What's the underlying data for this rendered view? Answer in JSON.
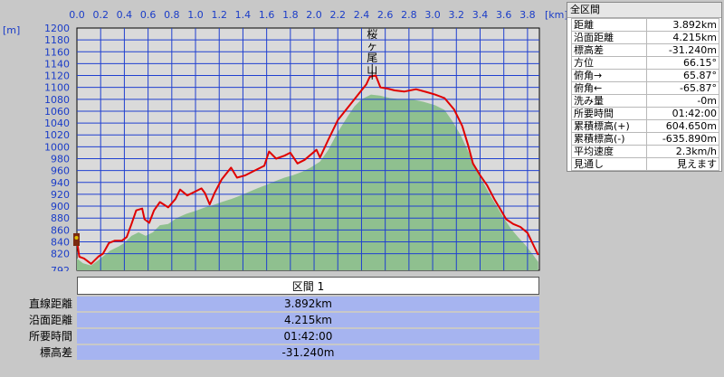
{
  "chart_data": {
    "type": "area",
    "x_unit": "[km]",
    "y_unit": "[m]",
    "xlim": [
      0,
      3.9
    ],
    "ylim": [
      792,
      1200
    ],
    "x_ticks": [
      "0.0",
      "0.2",
      "0.4",
      "0.6",
      "0.8",
      "1.0",
      "1.2",
      "1.4",
      "1.6",
      "1.8",
      "2.0",
      "2.2",
      "2.4",
      "2.6",
      "2.8",
      "3.0",
      "3.2",
      "3.4",
      "3.6",
      "3.8"
    ],
    "y_ticks": [
      "1200",
      "1180",
      "1160",
      "1140",
      "1120",
      "1100",
      "1080",
      "1060",
      "1040",
      "1020",
      "1000",
      "980",
      "960",
      "940",
      "920",
      "900",
      "880",
      "860",
      "840",
      "820",
      "792"
    ],
    "grid": true,
    "peak_label": "桜ヶ尾山",
    "peak_x": 2.49,
    "series": [
      {
        "kind": "line",
        "color": "#e00000",
        "points": [
          [
            0.0,
            842
          ],
          [
            0.02,
            815
          ],
          [
            0.06,
            812
          ],
          [
            0.12,
            803
          ],
          [
            0.18,
            815
          ],
          [
            0.22,
            820
          ],
          [
            0.27,
            838
          ],
          [
            0.32,
            842
          ],
          [
            0.38,
            842
          ],
          [
            0.42,
            848
          ],
          [
            0.46,
            870
          ],
          [
            0.5,
            893
          ],
          [
            0.55,
            896
          ],
          [
            0.57,
            878
          ],
          [
            0.61,
            872
          ],
          [
            0.65,
            893
          ],
          [
            0.7,
            907
          ],
          [
            0.77,
            898
          ],
          [
            0.83,
            912
          ],
          [
            0.87,
            928
          ],
          [
            0.93,
            918
          ],
          [
            0.98,
            923
          ],
          [
            1.05,
            930
          ],
          [
            1.08,
            922
          ],
          [
            1.12,
            903
          ],
          [
            1.16,
            922
          ],
          [
            1.22,
            945
          ],
          [
            1.3,
            965
          ],
          [
            1.35,
            948
          ],
          [
            1.42,
            952
          ],
          [
            1.5,
            960
          ],
          [
            1.58,
            968
          ],
          [
            1.62,
            992
          ],
          [
            1.68,
            980
          ],
          [
            1.75,
            985
          ],
          [
            1.8,
            990
          ],
          [
            1.86,
            972
          ],
          [
            1.92,
            978
          ],
          [
            2.02,
            995
          ],
          [
            2.05,
            982
          ],
          [
            2.12,
            1012
          ],
          [
            2.2,
            1045
          ],
          [
            2.3,
            1070
          ],
          [
            2.38,
            1090
          ],
          [
            2.44,
            1105
          ],
          [
            2.47,
            1118
          ],
          [
            2.52,
            1120
          ],
          [
            2.56,
            1100
          ],
          [
            2.62,
            1098
          ],
          [
            2.68,
            1095
          ],
          [
            2.76,
            1093
          ],
          [
            2.86,
            1097
          ],
          [
            2.95,
            1092
          ],
          [
            3.02,
            1088
          ],
          [
            3.1,
            1082
          ],
          [
            3.18,
            1063
          ],
          [
            3.25,
            1035
          ],
          [
            3.3,
            1002
          ],
          [
            3.34,
            972
          ],
          [
            3.4,
            952
          ],
          [
            3.46,
            935
          ],
          [
            3.52,
            912
          ],
          [
            3.57,
            895
          ],
          [
            3.62,
            878
          ],
          [
            3.68,
            870
          ],
          [
            3.74,
            865
          ],
          [
            3.8,
            855
          ],
          [
            3.86,
            830
          ],
          [
            3.89,
            818
          ]
        ]
      },
      {
        "kind": "area",
        "color": "#8fc08f",
        "points": [
          [
            0.0,
            812
          ],
          [
            0.05,
            804
          ],
          [
            0.12,
            800
          ],
          [
            0.2,
            812
          ],
          [
            0.28,
            825
          ],
          [
            0.35,
            832
          ],
          [
            0.4,
            838
          ],
          [
            0.46,
            850
          ],
          [
            0.52,
            856
          ],
          [
            0.58,
            850
          ],
          [
            0.64,
            856
          ],
          [
            0.7,
            868
          ],
          [
            0.77,
            870
          ],
          [
            0.84,
            880
          ],
          [
            0.92,
            887
          ],
          [
            1.0,
            892
          ],
          [
            1.08,
            898
          ],
          [
            1.15,
            902
          ],
          [
            1.22,
            907
          ],
          [
            1.3,
            912
          ],
          [
            1.38,
            918
          ],
          [
            1.45,
            924
          ],
          [
            1.52,
            930
          ],
          [
            1.6,
            936
          ],
          [
            1.67,
            942
          ],
          [
            1.75,
            948
          ],
          [
            1.82,
            952
          ],
          [
            1.9,
            958
          ],
          [
            1.97,
            965
          ],
          [
            2.05,
            975
          ],
          [
            2.12,
            995
          ],
          [
            2.2,
            1025
          ],
          [
            2.28,
            1050
          ],
          [
            2.34,
            1068
          ],
          [
            2.4,
            1080
          ],
          [
            2.48,
            1088
          ],
          [
            2.56,
            1086
          ],
          [
            2.64,
            1082
          ],
          [
            2.72,
            1080
          ],
          [
            2.82,
            1080
          ],
          [
            2.92,
            1076
          ],
          [
            3.02,
            1070
          ],
          [
            3.1,
            1062
          ],
          [
            3.17,
            1042
          ],
          [
            3.24,
            1018
          ],
          [
            3.3,
            992
          ],
          [
            3.36,
            965
          ],
          [
            3.42,
            942
          ],
          [
            3.48,
            920
          ],
          [
            3.54,
            900
          ],
          [
            3.6,
            880
          ],
          [
            3.66,
            862
          ],
          [
            3.72,
            848
          ],
          [
            3.78,
            835
          ],
          [
            3.84,
            820
          ],
          [
            3.89,
            806
          ]
        ]
      }
    ]
  },
  "summary": {
    "header": "全区間",
    "rows": [
      {
        "label": "距離",
        "value": "3.892km"
      },
      {
        "label": "沿面距離",
        "value": "4.215km"
      },
      {
        "label": "標高差",
        "value": "-31.240m"
      },
      {
        "label": "方位",
        "value": "66.15°"
      },
      {
        "label": "俯角→",
        "value": "65.87°"
      },
      {
        "label": "俯角←",
        "value": "-65.87°"
      },
      {
        "label": "洗み量",
        "value": "-0m"
      },
      {
        "label": "所要時間",
        "value": "01:42:00"
      },
      {
        "label": "累積標高(+)",
        "value": "604.650m"
      },
      {
        "label": "累積標高(-)",
        "value": "-635.890m"
      },
      {
        "label": "平均速度",
        "value": "2.3km/h"
      },
      {
        "label": "見通し",
        "value": "見えます"
      }
    ]
  },
  "section": {
    "title": "区間 1",
    "rows": [
      {
        "label": "直線距離",
        "value": "3.892km"
      },
      {
        "label": "沿面距離",
        "value": "4.215km"
      },
      {
        "label": "所要時間",
        "value": "01:42:00"
      },
      {
        "label": "標高差",
        "value": "-31.240m"
      }
    ]
  }
}
